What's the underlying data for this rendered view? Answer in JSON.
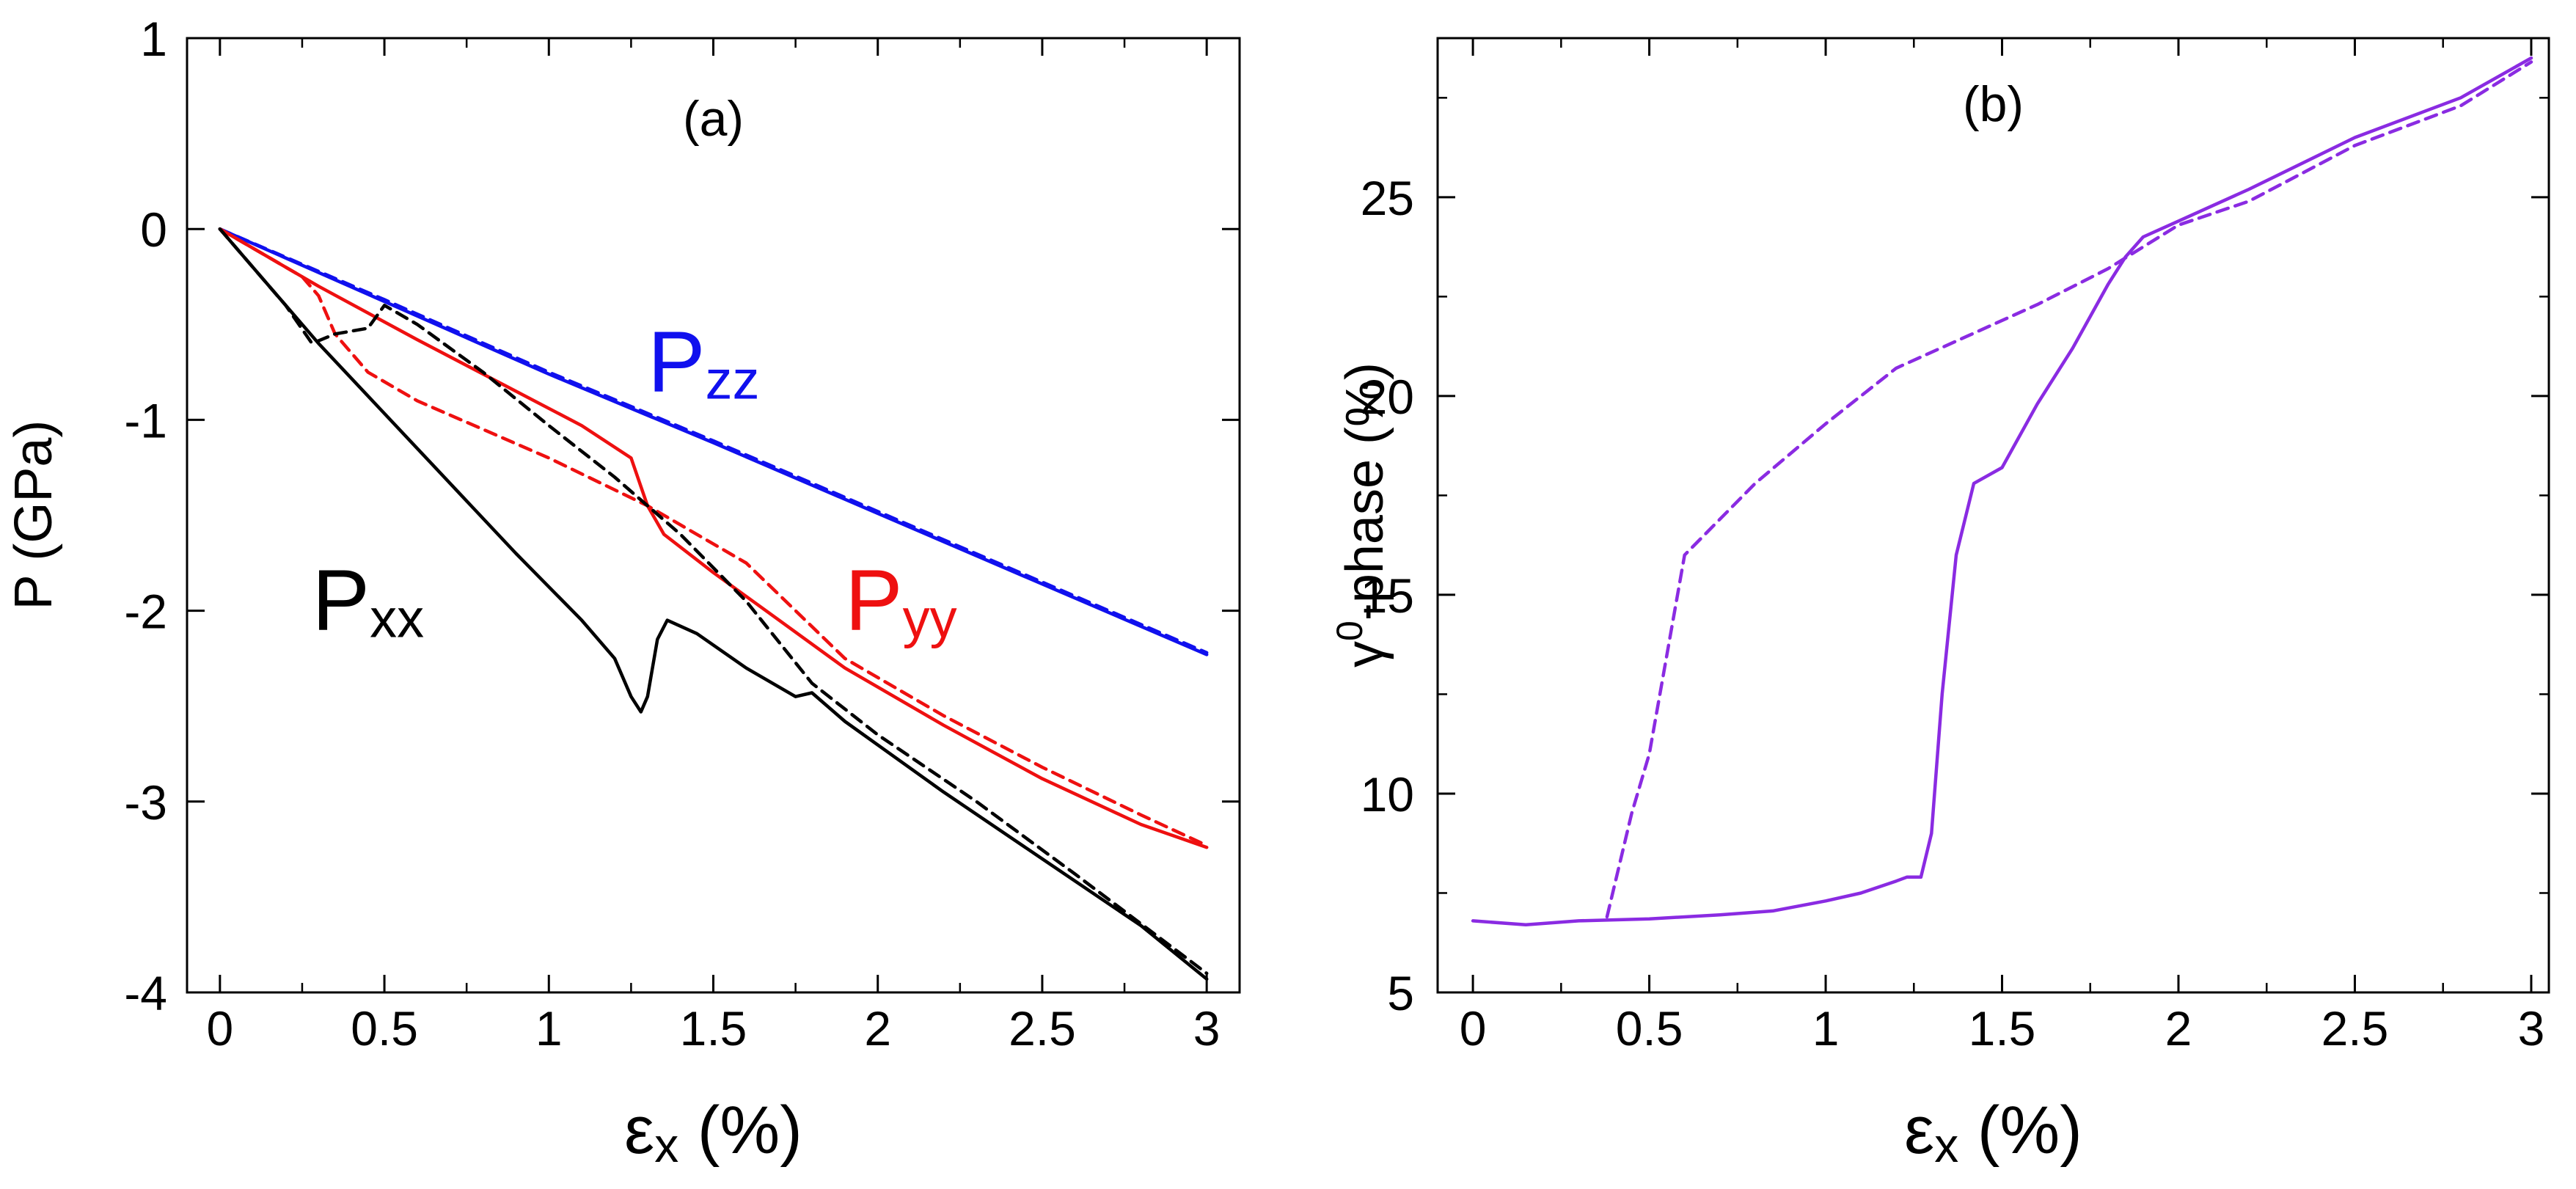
{
  "chart_data": [
    {
      "type": "line",
      "panel_label": "(a)",
      "xlabel": {
        "main": "ε",
        "sub": "x",
        "unit": " (%)"
      },
      "ylabel": "P (GPa)",
      "xlim": [
        -0.1,
        3.1
      ],
      "ylim": [
        -4,
        1
      ],
      "xticks": [
        0,
        0.5,
        1,
        1.5,
        2,
        2.5,
        3
      ],
      "xtick_labels": [
        "0",
        "0.5",
        "1",
        "1.5",
        "2",
        "2.5",
        "3"
      ],
      "yticks": [
        -4,
        -3,
        -2,
        -1,
        0,
        1
      ],
      "ytick_labels": [
        "-4",
        "-3",
        "-2",
        "-1",
        "0",
        "1"
      ],
      "grid": false,
      "annotations": [
        {
          "main": "P",
          "sub": "zz",
          "color": "#1010ee",
          "x": 1.3,
          "y": -0.85
        },
        {
          "main": "P",
          "sub": "yy",
          "color": "#ee1010",
          "x": 1.9,
          "y": -2.1
        },
        {
          "main": "P",
          "sub": "xx",
          "color": "#000000",
          "x": 0.28,
          "y": -2.1
        }
      ],
      "series": [
        {
          "color": "#1010ee",
          "dash": "solid",
          "x": [
            0,
            0.5,
            1,
            1.5,
            2,
            2.5,
            3
          ],
          "y": [
            0,
            -0.38,
            -0.76,
            -1.12,
            -1.49,
            -1.86,
            -2.23
          ]
        },
        {
          "color": "#1010ee",
          "dash": "dashed",
          "x": [
            0,
            0.5,
            1,
            1.5,
            2,
            2.5,
            3
          ],
          "y": [
            0,
            -0.37,
            -0.75,
            -1.11,
            -1.48,
            -1.85,
            -2.22
          ]
        },
        {
          "color": "#ee1010",
          "dash": "solid",
          "x": [
            0,
            0.3,
            0.6,
            0.9,
            1.1,
            1.25,
            1.3,
            1.35,
            1.5,
            1.7,
            1.9,
            2.2,
            2.5,
            2.8,
            3
          ],
          "y": [
            0,
            -0.3,
            -0.58,
            -0.85,
            -1.03,
            -1.2,
            -1.45,
            -1.6,
            -1.8,
            -2.05,
            -2.3,
            -2.6,
            -2.88,
            -3.12,
            -3.24
          ]
        },
        {
          "color": "#ee1010",
          "dash": "dashed",
          "x": [
            0,
            0.25,
            0.3,
            0.35,
            0.45,
            0.6,
            0.8,
            1.0,
            1.3,
            1.6,
            1.9,
            2.2,
            2.5,
            2.8,
            3
          ],
          "y": [
            0,
            -0.25,
            -0.35,
            -0.55,
            -0.75,
            -0.9,
            -1.05,
            -1.2,
            -1.45,
            -1.75,
            -2.25,
            -2.55,
            -2.82,
            -3.07,
            -3.23
          ]
        },
        {
          "color": "#000000",
          "dash": "solid",
          "x": [
            0,
            0.3,
            0.6,
            0.9,
            1.1,
            1.2,
            1.25,
            1.28,
            1.3,
            1.33,
            1.36,
            1.45,
            1.6,
            1.75,
            1.8,
            1.9,
            2.2,
            2.5,
            2.8,
            3
          ],
          "y": [
            0,
            -0.6,
            -1.15,
            -1.7,
            -2.05,
            -2.25,
            -2.45,
            -2.53,
            -2.45,
            -2.15,
            -2.05,
            -2.12,
            -2.3,
            -2.45,
            -2.43,
            -2.58,
            -2.95,
            -3.3,
            -3.65,
            -3.93
          ]
        },
        {
          "color": "#000000",
          "dash": "dashed",
          "x": [
            0,
            0.2,
            0.28,
            0.35,
            0.45,
            0.5,
            0.6,
            0.8,
            1.0,
            1.2,
            1.4,
            1.6,
            1.8,
            2.0,
            2.3,
            2.6,
            3
          ],
          "y": [
            0,
            -0.4,
            -0.6,
            -0.55,
            -0.52,
            -0.4,
            -0.5,
            -0.75,
            -1.03,
            -1.3,
            -1.6,
            -1.95,
            -2.38,
            -2.65,
            -3.0,
            -3.38,
            -3.9
          ]
        }
      ]
    },
    {
      "type": "line",
      "panel_label": "(b)",
      "xlabel": {
        "main": "ε",
        "sub": "x",
        "unit": " (%)"
      },
      "ylabel": {
        "main": "γ",
        "sup": "0",
        "unit": "-phase (%)"
      },
      "xlim": [
        -0.1,
        3.05
      ],
      "ylim": [
        5,
        29
      ],
      "xticks": [
        0,
        0.5,
        1,
        1.5,
        2,
        2.5,
        3
      ],
      "xtick_labels": [
        "0",
        "0.5",
        "1",
        "1.5",
        "2",
        "2.5",
        "3"
      ],
      "yticks": [
        5,
        10,
        15,
        20,
        25
      ],
      "ytick_labels": [
        "5",
        "10",
        "15",
        "20",
        "25"
      ],
      "grid": false,
      "series": [
        {
          "color": "#8a2be2",
          "dash": "solid",
          "x": [
            0,
            0.15,
            0.3,
            0.5,
            0.7,
            0.85,
            1.0,
            1.1,
            1.2,
            1.23,
            1.27,
            1.3,
            1.33,
            1.37,
            1.42,
            1.5,
            1.6,
            1.7,
            1.8,
            1.85,
            1.9,
            2.0,
            2.2,
            2.5,
            2.8,
            3.0
          ],
          "y": [
            6.8,
            6.7,
            6.8,
            6.85,
            6.95,
            7.05,
            7.3,
            7.5,
            7.8,
            7.9,
            7.9,
            9.0,
            12.5,
            16.0,
            17.8,
            18.2,
            19.8,
            21.2,
            22.8,
            23.5,
            24.0,
            24.4,
            25.2,
            26.5,
            27.5,
            28.5
          ]
        },
        {
          "color": "#8a2be2",
          "dash": "dashed",
          "x": [
            0.38,
            0.45,
            0.5,
            0.6,
            0.8,
            1.0,
            1.2,
            1.4,
            1.6,
            1.8,
            2.0,
            2.2,
            2.5,
            2.8,
            3.0
          ],
          "y": [
            6.9,
            9.5,
            11.0,
            16.0,
            17.8,
            19.3,
            20.7,
            21.5,
            22.3,
            23.2,
            24.3,
            24.9,
            26.3,
            27.3,
            28.4
          ]
        }
      ]
    }
  ]
}
